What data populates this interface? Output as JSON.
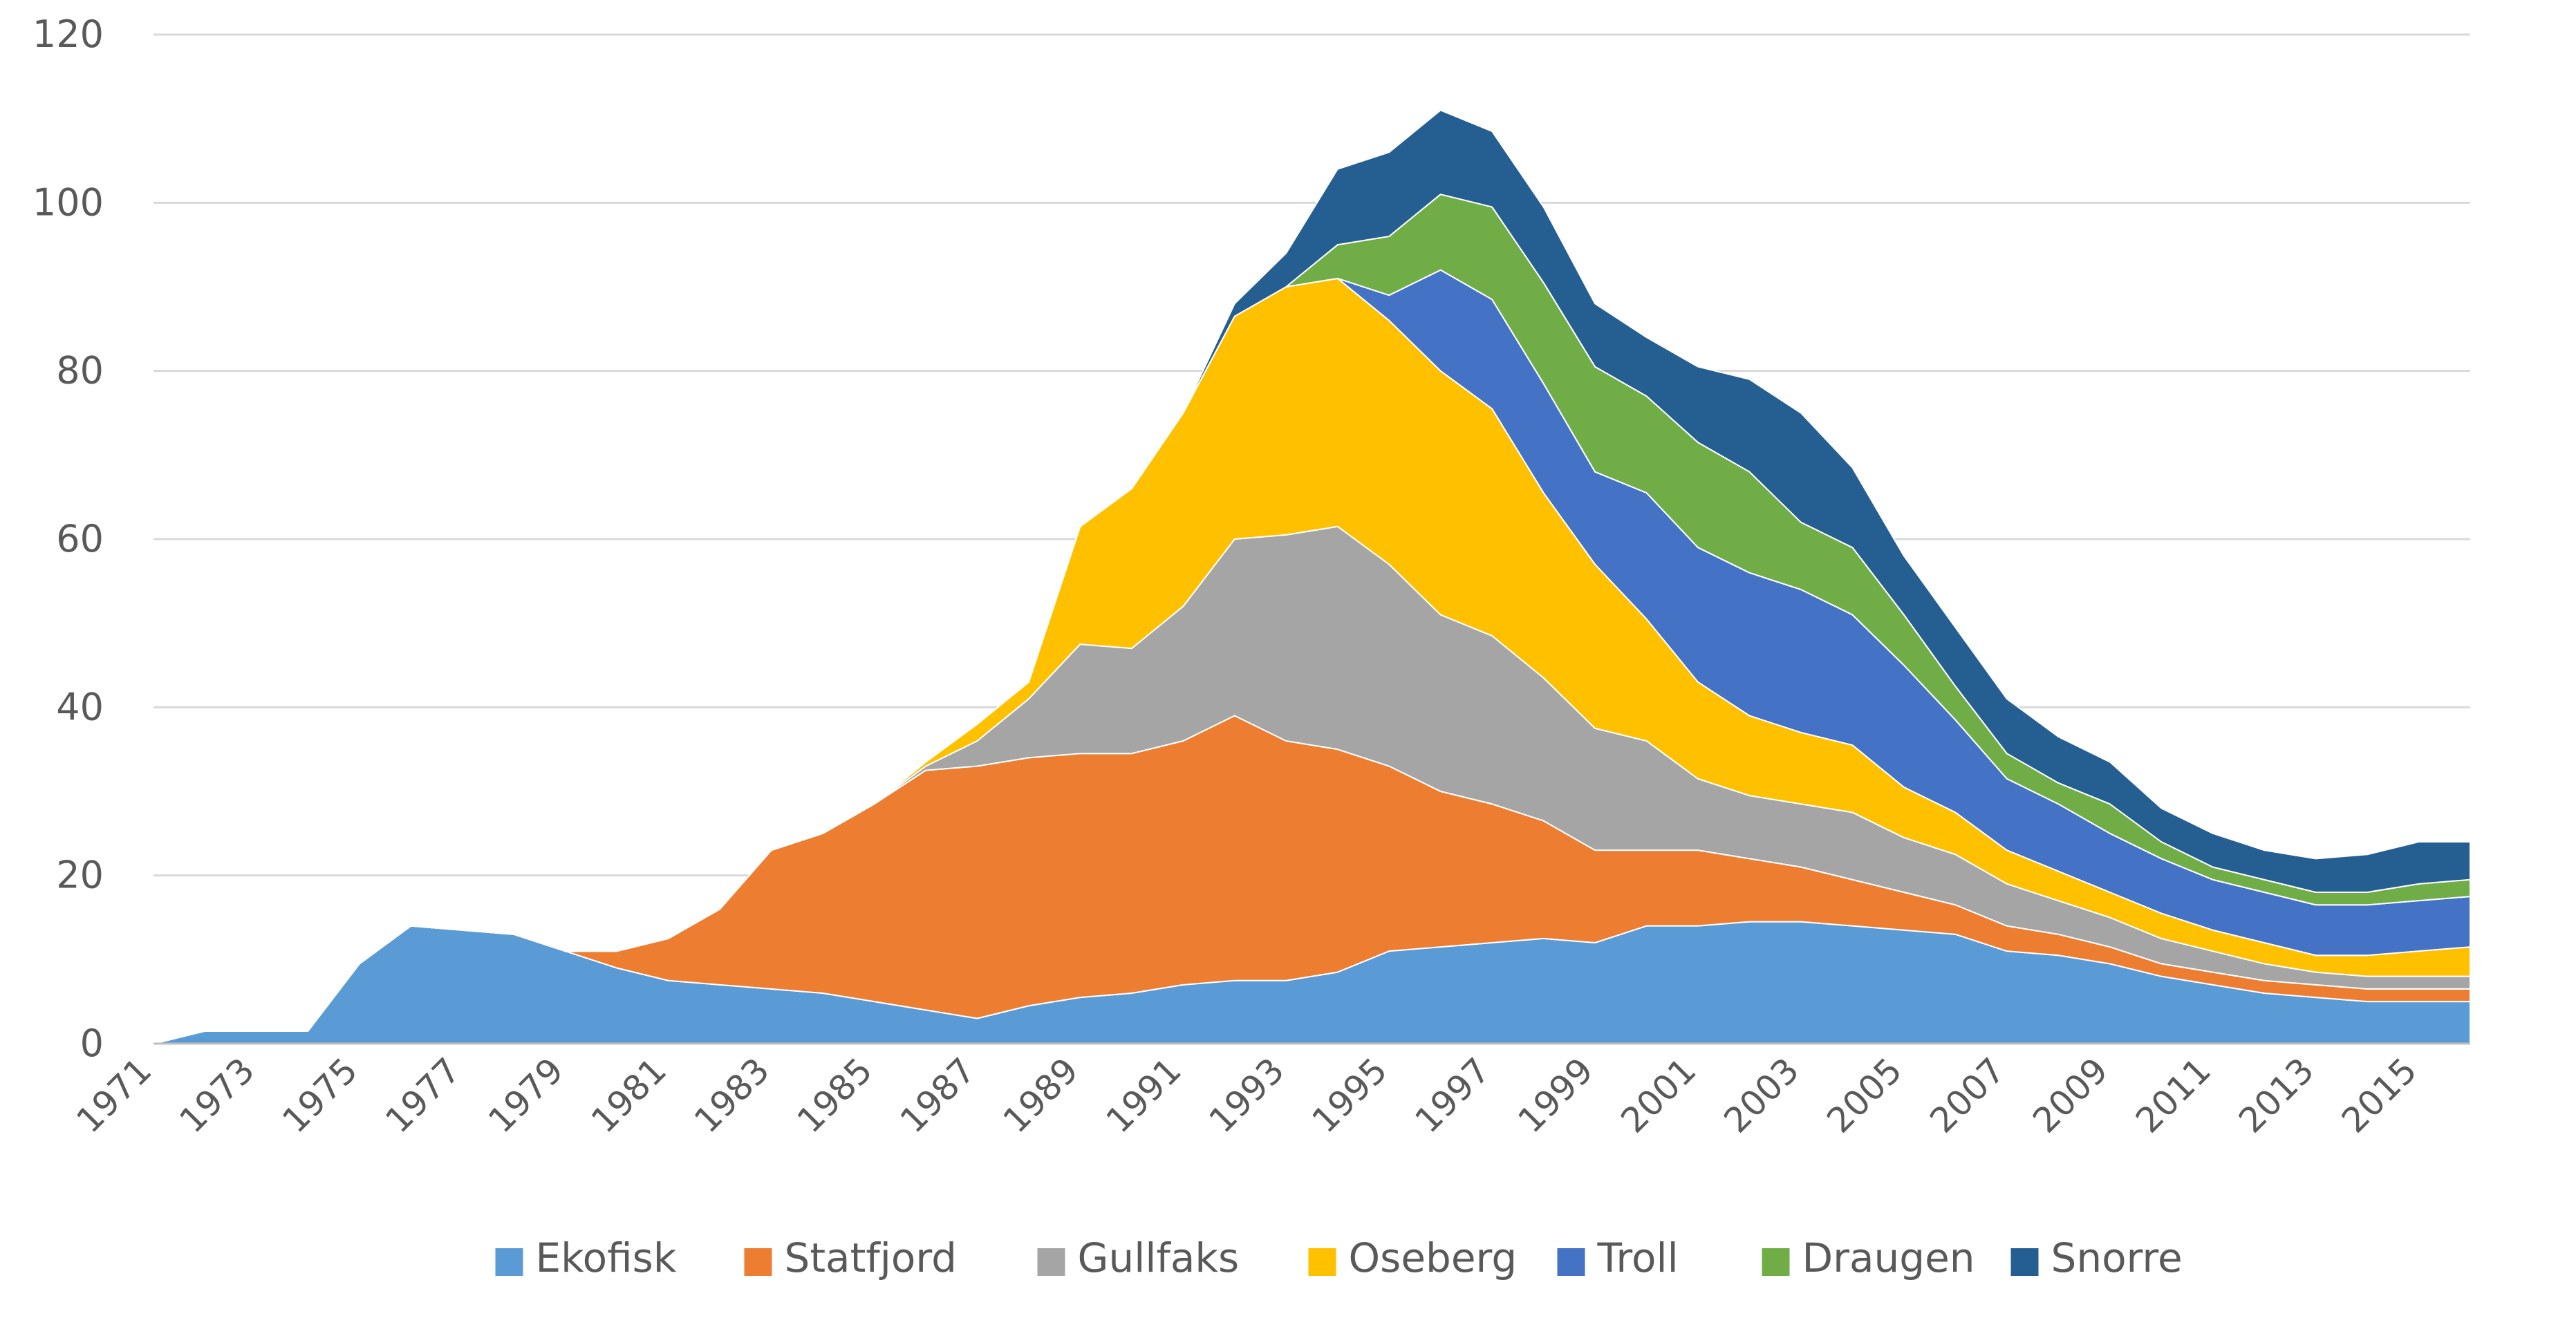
{
  "chart_data": {
    "type": "area",
    "stacked": true,
    "title": "",
    "xlabel": "",
    "ylabel": "",
    "ylim": [
      0,
      120
    ],
    "yticks": [
      0,
      20,
      40,
      60,
      80,
      100,
      120
    ],
    "grid": true,
    "legend_position": "bottom",
    "x": [
      1971,
      1972,
      1973,
      1974,
      1975,
      1976,
      1977,
      1978,
      1979,
      1980,
      1981,
      1982,
      1983,
      1984,
      1985,
      1986,
      1987,
      1988,
      1989,
      1990,
      1991,
      1992,
      1993,
      1994,
      1995,
      1996,
      1997,
      1998,
      1999,
      2000,
      2001,
      2002,
      2003,
      2004,
      2005,
      2006,
      2007,
      2008,
      2009,
      2010,
      2011,
      2012,
      2013,
      2014,
      2015,
      2016
    ],
    "xtick_labels": [
      "1971",
      "1973",
      "1975",
      "1977",
      "1979",
      "1981",
      "1983",
      "1985",
      "1987",
      "1989",
      "1991",
      "1993",
      "1995",
      "1997",
      "1999",
      "2001",
      "2003",
      "2005",
      "2007",
      "2009",
      "2011",
      "2013",
      "2015"
    ],
    "series": [
      {
        "name": "Ekofisk",
        "color": "#5b9bd5",
        "values": [
          0,
          1.5,
          1.5,
          1.5,
          9.5,
          14,
          13.5,
          13,
          11,
          9,
          7.5,
          7,
          6.5,
          6,
          5,
          4,
          3,
          4.5,
          5.5,
          6,
          7,
          7.5,
          7.5,
          8.5,
          11,
          11.5,
          12,
          12.5,
          12,
          14,
          14,
          14.5,
          14.5,
          14,
          13.5,
          13,
          11,
          10.5,
          9.5,
          8,
          7,
          6,
          5.5,
          5,
          5,
          5
        ]
      },
      {
        "name": "Statfjord",
        "color": "#ed7d31",
        "values": [
          0,
          0,
          0,
          0,
          0,
          0,
          0,
          0,
          0,
          2,
          5,
          9,
          16.5,
          19,
          23.5,
          28.5,
          30,
          29.5,
          29,
          28.5,
          29,
          31.5,
          28.5,
          26.5,
          22,
          18.5,
          16.5,
          14,
          11,
          9,
          9,
          7.5,
          6.5,
          5.5,
          4.5,
          3.5,
          3,
          2.5,
          2,
          1.5,
          1.5,
          1.5,
          1.5,
          1.5,
          1.5,
          1.5
        ]
      },
      {
        "name": "Gullfaks",
        "color": "#a5a5a5",
        "values": [
          0,
          0,
          0,
          0,
          0,
          0,
          0,
          0,
          0,
          0,
          0,
          0,
          0,
          0,
          0,
          0.5,
          3,
          7,
          13,
          12.5,
          16,
          21,
          24.5,
          26.5,
          24,
          21,
          20,
          17,
          14.5,
          13,
          8.5,
          7.5,
          7.5,
          8,
          6.5,
          6,
          5,
          4,
          3.5,
          3,
          2.5,
          2,
          1.5,
          1.5,
          1.5,
          1.5
        ]
      },
      {
        "name": "Oseberg",
        "color": "#ffc000",
        "values": [
          0,
          0,
          0,
          0,
          0,
          0,
          0,
          0,
          0,
          0,
          0,
          0,
          0,
          0,
          0,
          0.5,
          2,
          2,
          14,
          19,
          23,
          26.5,
          29.5,
          29.5,
          29,
          29,
          27,
          22,
          19.5,
          14.5,
          11.5,
          9.5,
          8.5,
          8,
          6,
          5,
          4,
          3.5,
          3,
          3,
          2.5,
          2.5,
          2,
          2.5,
          3,
          3.5
        ]
      },
      {
        "name": "Troll",
        "color": "#4472c4",
        "values": [
          0,
          0,
          0,
          0,
          0,
          0,
          0,
          0,
          0,
          0,
          0,
          0,
          0,
          0,
          0,
          0,
          0,
          0,
          0,
          0,
          0,
          0,
          0,
          0,
          3,
          12,
          13,
          13,
          11,
          15,
          16,
          17,
          17,
          15.5,
          14.5,
          11,
          8.5,
          8,
          7,
          6.5,
          6,
          6,
          6,
          6,
          6,
          6
        ]
      },
      {
        "name": "Draugen",
        "color": "#70ad47",
        "values": [
          0,
          0,
          0,
          0,
          0,
          0,
          0,
          0,
          0,
          0,
          0,
          0,
          0,
          0,
          0,
          0,
          0,
          0,
          0,
          0,
          0,
          0,
          0,
          4,
          7,
          9,
          11,
          12,
          12.5,
          11.5,
          12.5,
          12,
          8,
          8,
          6,
          4,
          3,
          2.5,
          3.5,
          2,
          1.5,
          1.5,
          1.5,
          1.5,
          2,
          2
        ]
      },
      {
        "name": "Snorre",
        "color": "#255e91",
        "values": [
          0,
          0,
          0,
          0,
          0,
          0,
          0,
          0,
          0,
          0,
          0,
          0,
          0,
          0,
          0,
          0,
          0,
          0,
          0,
          0,
          0,
          1.5,
          4,
          9,
          10,
          10,
          9,
          9,
          7.5,
          7,
          9,
          11,
          13,
          9.5,
          7,
          7,
          6.5,
          5.5,
          5,
          4,
          4,
          3.5,
          4,
          4.5,
          5,
          4.5
        ]
      }
    ]
  }
}
